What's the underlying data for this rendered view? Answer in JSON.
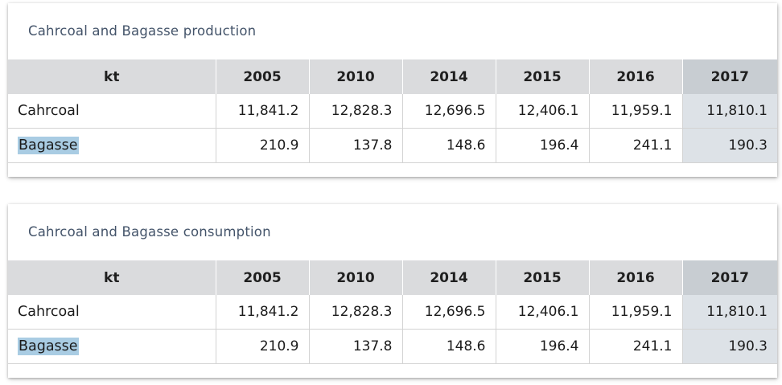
{
  "tables": [
    {
      "title": "Cahrcoal and Bagasse production",
      "columns": [
        "kt",
        "2005",
        "2010",
        "2014",
        "2015",
        "2016",
        "2017"
      ],
      "rows": [
        {
          "label": "Cahrcoal",
          "values": [
            "11,841.2",
            "12,828.3",
            "12,696.5",
            "12,406.1",
            "11,959.1",
            "11,810.1"
          ]
        },
        {
          "label": "Bagasse",
          "values": [
            "210.9",
            "137.8",
            "148.6",
            "196.4",
            "241.1",
            "190.3"
          ]
        }
      ]
    },
    {
      "title": "Cahrcoal and Bagasse  consumption",
      "columns": [
        "kt",
        "2005",
        "2010",
        "2014",
        "2015",
        "2016",
        "2017"
      ],
      "rows": [
        {
          "label": "Cahrcoal",
          "values": [
            "11,841.2",
            "12,828.3",
            "12,696.5",
            "12,406.1",
            "11,959.1",
            "11,810.1"
          ]
        },
        {
          "label": "Bagasse",
          "values": [
            "210.9",
            "137.8",
            "148.6",
            "196.4",
            "241.1",
            "190.3"
          ]
        }
      ]
    }
  ],
  "colors": {
    "header_bg": "#dadbdd",
    "highlight_column_header_bg": "#c8cdd2",
    "highlight_column_cell_bg": "#dde2e7",
    "selection_bg": "#a9cce3",
    "title_color": "#44546a"
  }
}
